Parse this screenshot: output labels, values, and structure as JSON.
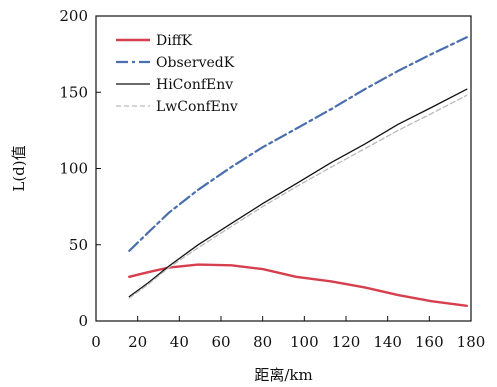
{
  "chart_data": {
    "type": "line",
    "xlabel": "距离/km",
    "ylabel": "L(d)值",
    "xlim": [
      0,
      180
    ],
    "ylim": [
      0,
      200
    ],
    "xticks": [
      0,
      20,
      40,
      60,
      80,
      100,
      120,
      140,
      160,
      180
    ],
    "yticks": [
      0,
      50,
      100,
      150,
      200
    ],
    "grid": false,
    "legend_position": "top-left",
    "series": [
      {
        "name": "DiffK",
        "color": "#d6404e",
        "style": "solid",
        "x": [
          16,
          25,
          35,
          49,
          65,
          80,
          96,
          113,
          129,
          145,
          161,
          178
        ],
        "y": [
          29,
          32,
          35,
          37,
          36.5,
          34,
          29,
          26,
          22,
          17,
          13,
          10
        ]
      },
      {
        "name": "ObservedK",
        "color": "#4a6fae",
        "style": "dashdot",
        "x": [
          16,
          25,
          35,
          49,
          65,
          80,
          96,
          113,
          129,
          145,
          161,
          178
        ],
        "y": [
          46,
          58,
          71,
          86,
          101,
          114,
          126,
          139,
          152,
          164,
          175,
          186
        ]
      },
      {
        "name": "HiConfEnv",
        "color": "#111111",
        "style": "solid",
        "x": [
          16,
          25,
          35,
          49,
          65,
          80,
          96,
          113,
          129,
          145,
          161,
          178
        ],
        "y": [
          16,
          25,
          36,
          50,
          64,
          77,
          90,
          104,
          116,
          129,
          140,
          152
        ]
      },
      {
        "name": "LwConfEnv",
        "color": "#b9b9b9",
        "style": "dashed",
        "x": [
          16,
          25,
          35,
          49,
          65,
          80,
          96,
          113,
          129,
          145,
          161,
          178
        ],
        "y": [
          15,
          24,
          35,
          48,
          62,
          75,
          88,
          101,
          113,
          125,
          136,
          148
        ]
      }
    ]
  }
}
